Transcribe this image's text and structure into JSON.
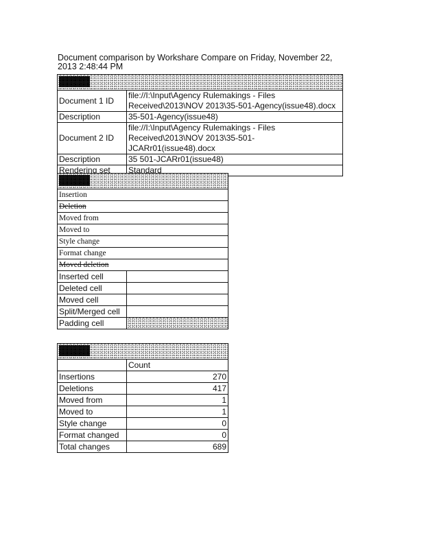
{
  "title": "Document comparison by Workshare Compare on Friday, November 22, 2013 2:48:44 PM",
  "details": [
    {
      "label": "Document 1 ID",
      "value": "file://I:\\Input\\Agency Rulemakings - Files Received\\2013\\NOV 2013\\35-501-Agency(issue48).docx"
    },
    {
      "label": "Description",
      "value": "35-501-Agency(issue48)"
    },
    {
      "label": "Document 2 ID",
      "value": "file://I:\\Input\\Agency Rulemakings - Files Received\\2013\\NOV 2013\\35-501-JCARr01(issue48).docx"
    },
    {
      "label": "Description",
      "value": "35 501-JCARr01(issue48)"
    },
    {
      "label": "Rendering set",
      "value": "Standard"
    }
  ],
  "legend": {
    "styled": [
      "Insertion",
      "Deletion",
      "Moved from",
      "Moved to",
      "Style change",
      "Format change",
      "Moved deletion"
    ],
    "cells": [
      "Inserted cell",
      "Deleted cell",
      "Moved cell",
      "Split/Merged cell",
      "Padding cell"
    ]
  },
  "stats": {
    "count_header": "Count",
    "rows": [
      {
        "label": "Insertions",
        "count": "270"
      },
      {
        "label": "Deletions",
        "count": "417"
      },
      {
        "label": "Moved from",
        "count": "1"
      },
      {
        "label": "Moved to",
        "count": "1"
      },
      {
        "label": "Style change",
        "count": "0"
      },
      {
        "label": "Format changed",
        "count": "0"
      },
      {
        "label": "Total changes",
        "count": "689"
      }
    ]
  }
}
